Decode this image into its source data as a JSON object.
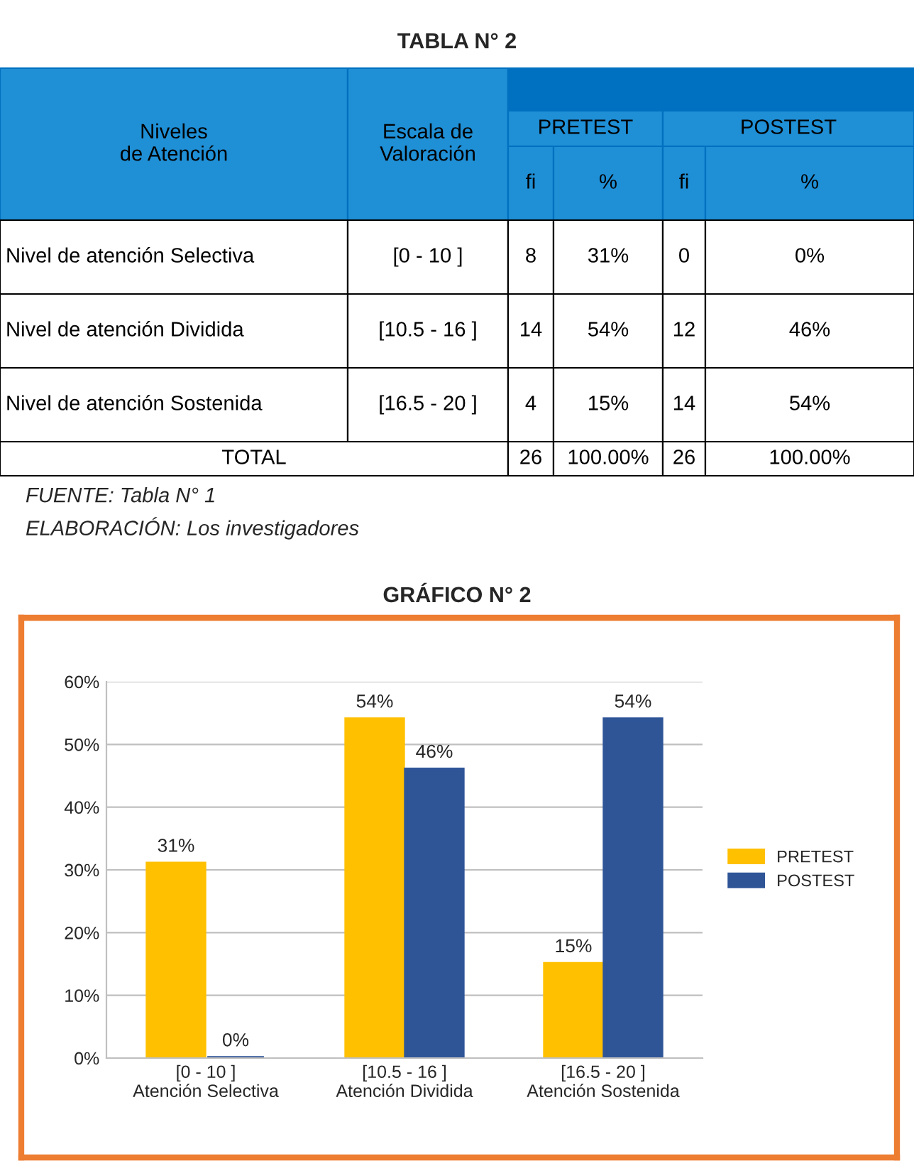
{
  "chart_data": [
    {
      "type": "other",
      "title": "TABLA N° 2",
      "subtitle": "FUENTE: Tabla N° 1\nELABORACIÓN: Los investigadores",
      "annotations": [
        "Niveles\nde Atención",
        "Escala de\nValoración",
        "PRETEST",
        "POSTEST",
        "fi",
        "%",
        "fi",
        "%",
        "Nivel de atención Selectiva",
        "[0 - 10 ]",
        "8",
        "31%",
        "0",
        "0%",
        "Nivel de atención Dividida",
        "[10.5 - 16 ]",
        "14",
        "54%",
        "12",
        "46%",
        "Nivel de atención Sostenida",
        "[16.5 - 20 ]",
        "4",
        "15%",
        "14",
        "54%",
        "TOTAL",
        "26",
        "100.00%",
        "26",
        "100.00%"
      ]
    },
    {
      "type": "bar",
      "title": "GRÁFICO N° 2",
      "categories": [
        "[0 - 10 ]\nAtención Selectiva",
        "[10.5 - 16 ]\nAtención Dividida",
        "[16.5 - 20 ]\nAtención Sostenida"
      ],
      "series": [
        {
          "name": "PRETEST",
          "color": "#ffc000",
          "values": [
            31,
            54,
            15
          ],
          "value_labels": [
            "31%",
            "54%",
            "15%"
          ]
        },
        {
          "name": "POSTEST",
          "color": "#2f5597",
          "values": [
            0,
            46,
            54
          ],
          "value_labels": [
            "0%",
            "46%",
            "54%"
          ]
        }
      ],
      "ylim": [
        0,
        60
      ],
      "yticks": [
        {
          "value": 0,
          "label": "0%"
        },
        {
          "value": 10,
          "label": "10%"
        },
        {
          "value": 20,
          "label": "20%"
        },
        {
          "value": 30,
          "label": "30%"
        },
        {
          "value": 40,
          "label": "40%"
        },
        {
          "value": 50,
          "label": "50%"
        },
        {
          "value": 60,
          "label": "60%"
        }
      ],
      "grid": "y",
      "legend": "right"
    }
  ]
}
